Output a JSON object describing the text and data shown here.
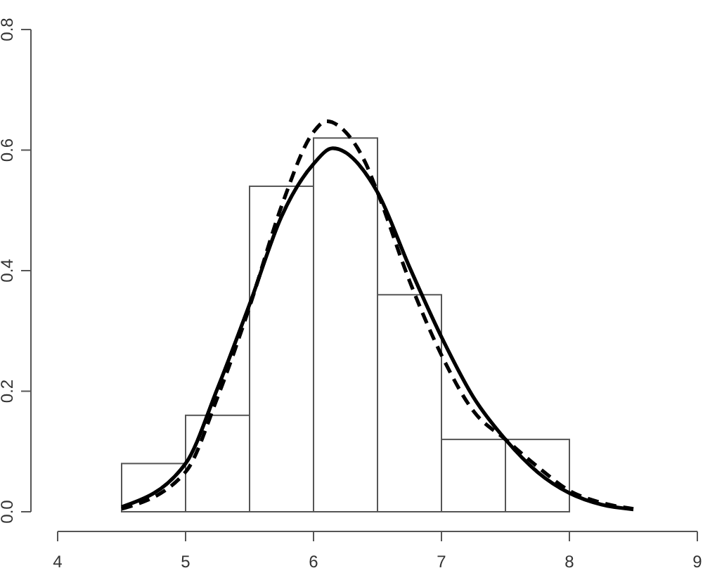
{
  "chart_data": {
    "type": "histogram",
    "xlim": [
      4,
      9
    ],
    "xticks": [
      4,
      5,
      6,
      7,
      8,
      9
    ],
    "ylim": [
      0,
      0.8
    ],
    "yticks": [
      {
        "value": 0,
        "label": "0.0"
      },
      {
        "value": 0.2,
        "label": "0.2"
      },
      {
        "value": 0.4,
        "label": "0.4"
      },
      {
        "value": 0.6,
        "label": "0.6"
      },
      {
        "value": 0.8,
        "label": "0.8"
      }
    ],
    "series": [
      {
        "color": "#ffffff",
        "bins": [
          4.5,
          5,
          5.5,
          6,
          6.5,
          7,
          7.5,
          8
        ],
        "values": [
          0.08,
          0.16,
          0.54,
          0.62,
          0.36,
          0.12,
          0.12
        ]
      },
      {
        "type": "line",
        "color": "#000000",
        "line_style": "solid",
        "x": [
          4.5,
          5,
          5.25,
          5.5,
          5.75,
          6,
          6.15,
          6.5,
          6.75,
          7,
          7.25,
          7.5,
          7.75,
          8,
          8.25,
          8.5
        ],
        "values": [
          0.008,
          0.08,
          0.205,
          0.344,
          0.49,
          0.577,
          0.603,
          0.53,
          0.406,
          0.29,
          0.19,
          0.12,
          0.066,
          0.031,
          0.012,
          0.004
        ]
      },
      {
        "type": "line",
        "color": "#000000",
        "line_style": "dashed",
        "x": [
          4.5,
          5,
          5.25,
          5.5,
          5.75,
          6,
          6.1,
          6.25,
          6.41,
          6.5,
          6.75,
          7,
          7.25,
          7.5,
          7.75,
          8,
          8.25,
          8.5
        ],
        "values": [
          0.005,
          0.066,
          0.19,
          0.34,
          0.507,
          0.63,
          0.648,
          0.63,
          0.577,
          0.53,
          0.383,
          0.26,
          0.167,
          0.12,
          0.075,
          0.035,
          0.015,
          0.005
        ]
      }
    ]
  }
}
